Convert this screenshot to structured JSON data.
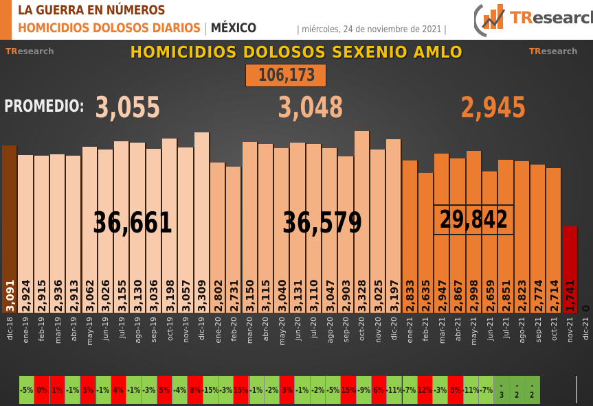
{
  "header": {
    "line1": "LA GUERRA EN NÚMEROS",
    "line2": "HOMICIDIOS DOLOSOS DIARIOS",
    "separator": "|",
    "country": "MÉXICO",
    "date": "| miércoles, 24 de noviembre de 2021 |",
    "logo_text_accent": "TR",
    "logo_text_rest": "esearch"
  },
  "watermark": {
    "accent": "TR",
    "rest": "esearch"
  },
  "colors": {
    "accent": "#ec7c30",
    "title_yellow": "#f5c400",
    "period1_bar": "#f8cbad",
    "period2_bar": "#f4b183",
    "period3_bar": "#ec7c30",
    "first_bar": "#843c0c",
    "current_bar": "#c00000",
    "pct_up": "#ff0000",
    "pct_down": "#92d050",
    "pct_partial": "#70ad47"
  },
  "chart_data": {
    "type": "bar",
    "title": "HOMICIDIOS DOLOSOS SEXENIO AMLO",
    "total": "106,173",
    "promedio_label": "PROMEDIO:",
    "averages": [
      "3,055",
      "3,048",
      "2,945"
    ],
    "period_totals": [
      "36,661",
      "36,579",
      "29,842"
    ],
    "categories": [
      "dic-18",
      "ene-19",
      "feb-19",
      "mar-19",
      "abr-19",
      "may-19",
      "jun-19",
      "jul-19",
      "ago-19",
      "sep-19",
      "oct-19",
      "nov-19",
      "dic-19",
      "ene-20",
      "feb-20",
      "mar-20",
      "abr-20",
      "may-20",
      "jun-20",
      "jul-20",
      "ago-20",
      "sep-20",
      "oct-20",
      "nov-20",
      "dic-20",
      "ene-21",
      "feb-21",
      "mar-21",
      "abr-21",
      "may-21",
      "jun-21",
      "jul-21",
      "ago-21",
      "sep-21",
      "oct-21",
      "nov-21",
      "dic-21"
    ],
    "values": [
      3091,
      2924,
      2915,
      2936,
      2913,
      3062,
      3026,
      3155,
      3130,
      3036,
      3198,
      3057,
      3309,
      2802,
      2731,
      3150,
      3115,
      3040,
      3131,
      3110,
      3047,
      2903,
      3328,
      3025,
      3197,
      2833,
      2635,
      2947,
      2867,
      2998,
      2659,
      2851,
      2823,
      2774,
      2714,
      1741,
      0
    ],
    "value_labels": [
      "3,091",
      "2,924",
      "2,915",
      "2,936",
      "2,913",
      "3,062",
      "3,026",
      "3,155",
      "3,130",
      "3,036",
      "3,198",
      "3,057",
      "3,309",
      "2,802",
      "2,731",
      "3,150",
      "3,115",
      "3,040",
      "3,131",
      "3,110",
      "3,047",
      "2,903",
      "3,328",
      "3,025",
      "3,197",
      "2,833",
      "2,635",
      "2,947",
      "2,867",
      "2,998",
      "2,659",
      "2,851",
      "2,823",
      "2,774",
      "2,714",
      "1,741",
      "0"
    ],
    "yoy_change": [
      "-5%",
      "0%",
      "1%",
      "-1%",
      "5%",
      "-1%",
      "4%",
      "-1%",
      "-3%",
      "5%",
      "-4%",
      "8%",
      "-15%",
      "-3%",
      "15%",
      "-1%",
      "-2%",
      "3%",
      "-1%",
      "-2%",
      "-5%",
      "15%",
      "-9%",
      "6%",
      "-11%",
      "-7%",
      "12%",
      "-3%",
      "5%",
      "-11%",
      "-7%",
      "-3",
      "-2",
      "-2"
    ],
    "xlabel": "",
    "ylabel": "",
    "grid": false
  }
}
